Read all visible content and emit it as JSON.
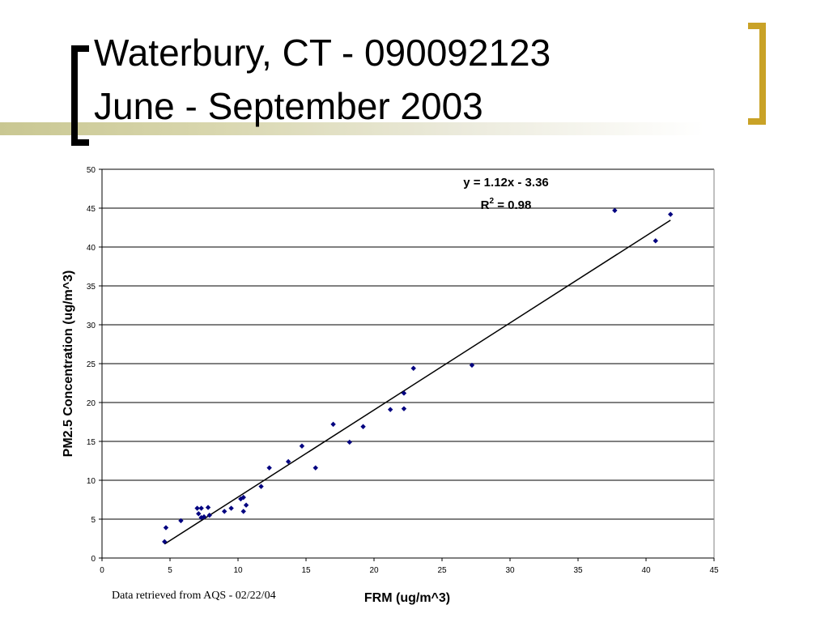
{
  "slide": {
    "title_line1": "Waterbury, CT - 090092123",
    "title_line2": "June - September 2003",
    "footer_note": "Data retrieved from AQS - 02/22/04",
    "accent_color": "#c9a227",
    "bar_color": "#c9c792"
  },
  "chart_data": {
    "type": "scatter",
    "title": "",
    "xlabel": "FRM (ug/m^3)",
    "ylabel": "PM2.5 Concentration (ug/m^3)",
    "xlim": [
      0,
      45
    ],
    "ylim": [
      0,
      50
    ],
    "xticks": [
      0,
      5,
      10,
      15,
      20,
      25,
      30,
      35,
      40,
      45
    ],
    "yticks": [
      0,
      5,
      10,
      15,
      20,
      25,
      30,
      35,
      40,
      45,
      50
    ],
    "grid": "horizontal",
    "point_color": "#000080",
    "points": [
      {
        "x": 4.6,
        "y": 2.1
      },
      {
        "x": 4.7,
        "y": 3.9
      },
      {
        "x": 5.8,
        "y": 4.8
      },
      {
        "x": 7.0,
        "y": 6.4
      },
      {
        "x": 7.1,
        "y": 5.7
      },
      {
        "x": 7.3,
        "y": 6.4
      },
      {
        "x": 7.3,
        "y": 5.2
      },
      {
        "x": 7.5,
        "y": 5.3
      },
      {
        "x": 7.8,
        "y": 6.5
      },
      {
        "x": 7.9,
        "y": 5.5
      },
      {
        "x": 9.0,
        "y": 6.0
      },
      {
        "x": 9.5,
        "y": 6.4
      },
      {
        "x": 10.2,
        "y": 7.6
      },
      {
        "x": 10.4,
        "y": 7.8
      },
      {
        "x": 10.4,
        "y": 6.0
      },
      {
        "x": 10.6,
        "y": 6.8
      },
      {
        "x": 11.7,
        "y": 9.2
      },
      {
        "x": 12.3,
        "y": 11.6
      },
      {
        "x": 13.7,
        "y": 12.4
      },
      {
        "x": 14.7,
        "y": 14.4
      },
      {
        "x": 15.7,
        "y": 11.6
      },
      {
        "x": 17.0,
        "y": 17.2
      },
      {
        "x": 18.2,
        "y": 14.9
      },
      {
        "x": 19.2,
        "y": 16.9
      },
      {
        "x": 21.2,
        "y": 19.1
      },
      {
        "x": 22.2,
        "y": 21.2
      },
      {
        "x": 22.2,
        "y": 19.2
      },
      {
        "x": 22.9,
        "y": 24.4
      },
      {
        "x": 27.2,
        "y": 24.8
      },
      {
        "x": 37.7,
        "y": 44.7
      },
      {
        "x": 40.7,
        "y": 40.8
      },
      {
        "x": 41.8,
        "y": 44.2
      }
    ],
    "trendline": {
      "slope": 1.12,
      "intercept": -3.36,
      "x_range": [
        4.6,
        41.8
      ]
    },
    "annotation": {
      "equation": "y = 1.12x - 3.36",
      "r2_prefix": "R",
      "r2_sup": "2",
      "r2_value": " = 0.98"
    }
  }
}
